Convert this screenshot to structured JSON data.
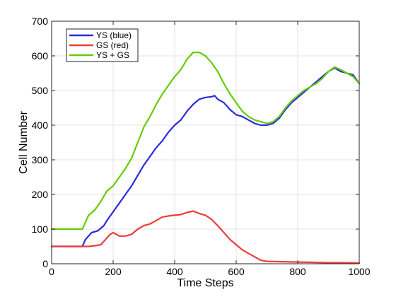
{
  "chart_data": {
    "type": "line",
    "title": "",
    "xlabel": "Time Steps",
    "ylabel": "Cell Number",
    "xlim": [
      0,
      1000
    ],
    "ylim": [
      0,
      700
    ],
    "xticks": [
      0,
      200,
      400,
      600,
      800,
      1000
    ],
    "yticks": [
      0,
      100,
      200,
      300,
      400,
      500,
      600,
      700
    ],
    "grid": true,
    "legend_position": "top-left",
    "series": [
      {
        "name": "YS (blue)",
        "color": "#2b2bdc",
        "x": [
          0,
          100,
          110,
          130,
          150,
          170,
          180,
          200,
          220,
          240,
          260,
          280,
          300,
          320,
          340,
          360,
          380,
          400,
          420,
          440,
          460,
          480,
          500,
          520,
          530,
          540,
          560,
          580,
          600,
          620,
          640,
          660,
          680,
          700,
          720,
          740,
          760,
          780,
          800,
          820,
          840,
          860,
          880,
          900,
          910,
          920,
          940,
          960,
          980,
          1000
        ],
        "y": [
          50,
          50,
          70,
          90,
          95,
          110,
          125,
          150,
          175,
          200,
          225,
          255,
          285,
          310,
          335,
          355,
          380,
          400,
          415,
          440,
          460,
          475,
          480,
          482,
          485,
          475,
          465,
          445,
          430,
          425,
          415,
          405,
          400,
          400,
          405,
          420,
          445,
          465,
          480,
          495,
          510,
          525,
          540,
          555,
          560,
          565,
          555,
          550,
          545,
          520
        ]
      },
      {
        "name": "GS (red)",
        "color": "#ef3b3b",
        "x": [
          0,
          100,
          120,
          140,
          160,
          180,
          190,
          200,
          220,
          240,
          260,
          280,
          300,
          320,
          340,
          360,
          380,
          400,
          420,
          440,
          460,
          480,
          500,
          520,
          540,
          560,
          580,
          600,
          620,
          640,
          660,
          680,
          700,
          750,
          800,
          850,
          900,
          950,
          1000
        ],
        "y": [
          50,
          50,
          50,
          52,
          55,
          75,
          85,
          90,
          80,
          80,
          85,
          100,
          110,
          115,
          125,
          135,
          138,
          140,
          142,
          148,
          152,
          145,
          140,
          128,
          110,
          90,
          70,
          55,
          40,
          30,
          20,
          10,
          7,
          6,
          5,
          4,
          3,
          3,
          2
        ]
      },
      {
        "name": "YS + GS",
        "color": "#66cc00",
        "x": [
          0,
          100,
          110,
          120,
          140,
          160,
          180,
          200,
          220,
          240,
          260,
          280,
          300,
          320,
          340,
          360,
          380,
          400,
          420,
          440,
          460,
          480,
          500,
          520,
          540,
          560,
          580,
          600,
          620,
          640,
          660,
          680,
          700,
          720,
          740,
          760,
          780,
          800,
          820,
          840,
          860,
          880,
          900,
          920,
          940,
          960,
          980,
          1000
        ],
        "y": [
          100,
          100,
          120,
          140,
          155,
          180,
          210,
          225,
          250,
          275,
          305,
          350,
          395,
          425,
          460,
          490,
          515,
          540,
          560,
          590,
          610,
          610,
          600,
          580,
          555,
          520,
          490,
          465,
          440,
          425,
          415,
          410,
          405,
          410,
          425,
          450,
          470,
          485,
          500,
          510,
          520,
          535,
          555,
          568,
          560,
          550,
          540,
          520
        ]
      }
    ]
  }
}
